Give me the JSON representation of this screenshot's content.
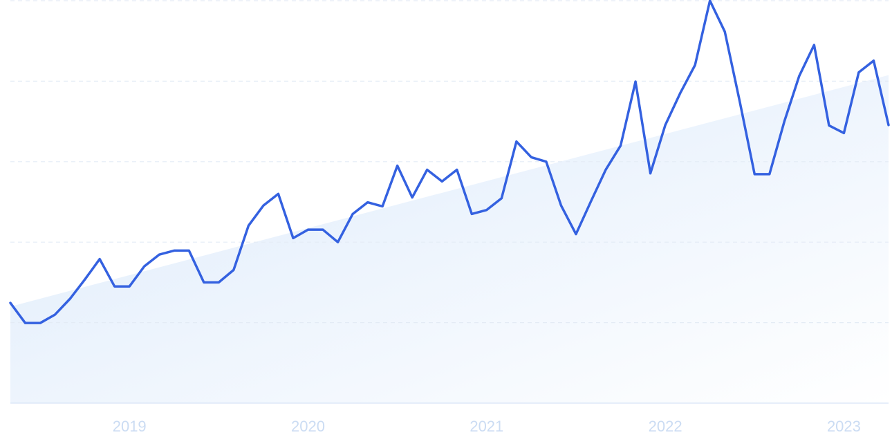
{
  "chart_data": {
    "type": "line",
    "categories": [
      null,
      null,
      null,
      null,
      null,
      null,
      null,
      null,
      "2019",
      null,
      null,
      null,
      null,
      null,
      null,
      null,
      null,
      null,
      null,
      null,
      "2020",
      null,
      null,
      null,
      null,
      null,
      null,
      null,
      null,
      null,
      null,
      null,
      "2021",
      null,
      null,
      null,
      null,
      null,
      null,
      null,
      null,
      null,
      null,
      null,
      "2022",
      null,
      null,
      null,
      null,
      null,
      null,
      null,
      null,
      null,
      null,
      null,
      "2023",
      null,
      null,
      null
    ],
    "series": [
      {
        "color": "#3461e0",
        "values": [
          24.9,
          19.9,
          19.9,
          22.0,
          25.9,
          30.7,
          35.8,
          29.0,
          29.0,
          34.0,
          36.9,
          37.9,
          37.9,
          30.0,
          30.0,
          33.1,
          44.1,
          49.1,
          52.0,
          41.0,
          43.1,
          43.1,
          40.0,
          47.0,
          49.9,
          48.9,
          59.0,
          51.1,
          58.0,
          55.1,
          58.0,
          47.0,
          48.0,
          50.9,
          65.0,
          61.1,
          60.0,
          49.1,
          42.0,
          50.1,
          58.0,
          64.0,
          79.9,
          57.1,
          69.1,
          77.0,
          84.0,
          100,
          92.3,
          75.0,
          56.9,
          56.9,
          70.0,
          81.3,
          89.0,
          69.0,
          67.1,
          82.2,
          85.1,
          69.1
        ]
      }
    ],
    "trend": {
      "color": "#dceafb",
      "values": [
        24.0,
        81.5
      ]
    },
    "ylim": [
      0,
      100
    ],
    "yticks": [
      0,
      20,
      40,
      60,
      80,
      100
    ],
    "grid": true
  }
}
